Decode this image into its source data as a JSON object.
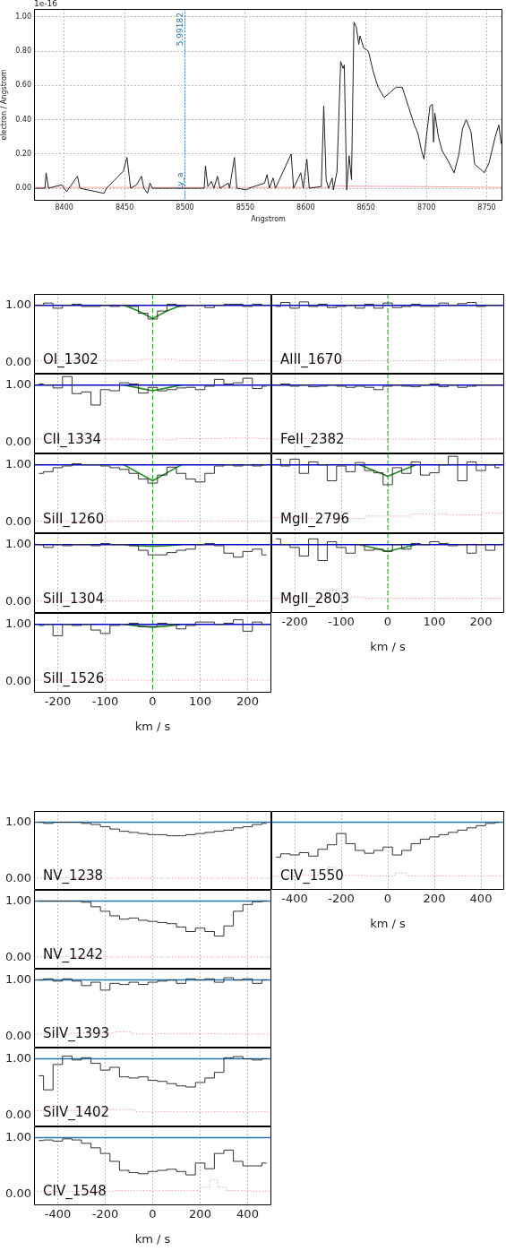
{
  "chart_data": [
    {
      "type": "line",
      "xlabel": "Angstrom",
      "ylabel": "electron / Angstrom",
      "xlim": [
        8375,
        8763
      ],
      "ylim": [
        -0.073,
        1.047
      ],
      "xticks": [
        8400,
        8450,
        8500,
        8550,
        8600,
        8650,
        8700,
        8750
      ],
      "yticks": [
        {
          "value": 0,
          "label": "0.00"
        },
        {
          "value": 0.2,
          "label": "0.20"
        },
        {
          "value": 0.4,
          "label": "0.40"
        },
        {
          "value": 0.6,
          "label": "0.60"
        },
        {
          "value": 0.8,
          "label": "0.80"
        },
        {
          "value": 1,
          "label": "1.00"
        }
      ],
      "grid": true,
      "annotations": [
        "1e-16",
        "Ly_a",
        "5.99182"
      ],
      "ref_lines": [
        {
          "axis": "x",
          "value": 8500,
          "color": "#1f77b4",
          "line_style": "dotted"
        }
      ],
      "series": [
        {
          "color": "#222222",
          "x": [
            8376,
            8384,
            8385,
            8387,
            8398,
            8400,
            8402,
            8404,
            8411,
            8413,
            8433,
            8435,
            8449,
            8452,
            8455,
            8460,
            8464,
            8466,
            8469,
            8471,
            8473,
            8516,
            8517,
            8519,
            8522,
            8524,
            8527,
            8529,
            8536,
            8537,
            8541,
            8543,
            8551,
            8553,
            8566,
            8568,
            8570,
            8573,
            8575,
            8588,
            8590,
            8596,
            8598,
            8601,
            8603,
            8613,
            8615,
            8617,
            8619,
            8622,
            8623,
            8626,
            8629,
            8631,
            8632,
            8634,
            8636,
            8638,
            8640,
            8642,
            8644,
            8645,
            8648,
            8652,
            8656,
            8660,
            8665,
            8670,
            8675,
            8680,
            8685,
            8690,
            8693,
            8696,
            8698,
            8700,
            8703,
            8705,
            8706,
            8707,
            8710,
            8713,
            8718,
            8723,
            8727,
            8730,
            8733,
            8737,
            8740,
            8745,
            8748,
            8752,
            8757,
            8760,
            8762
          ],
          "values": [
            0,
            0,
            0.09,
            0,
            0.02,
            0,
            -0.02,
            0,
            0.07,
            0,
            -0.03,
            0,
            0.1,
            0.18,
            0,
            0.02,
            0.07,
            0,
            -0.03,
            0.03,
            0,
            0,
            0.13,
            0.01,
            0.04,
            0,
            0.07,
            0,
            0.03,
            0,
            0.18,
            0,
            -0.01,
            0,
            0.03,
            0.08,
            0,
            0.06,
            0,
            0.2,
            0,
            0.09,
            0,
            0.17,
            0,
            0.01,
            0.48,
            0.05,
            0,
            0.06,
            -0.01,
            0.1,
            0.74,
            0.7,
            0.72,
            -0.01,
            0.19,
            0.05,
            0.97,
            0.94,
            0.84,
            0.89,
            0.82,
            0.8,
            0.68,
            0.59,
            0.53,
            0.56,
            0.59,
            0.59,
            0.48,
            0.37,
            0.32,
            0.22,
            0.17,
            0.3,
            0.48,
            0.49,
            0.27,
            0.44,
            0.3,
            0.22,
            0.16,
            0.09,
            0.2,
            0.35,
            0.4,
            0.33,
            0.14,
            0.11,
            0.09,
            0.15,
            0.3,
            0.37,
            0.26
          ]
        },
        {
          "color": "#f4a0a0",
          "x": [
            8376,
            8620,
            8625,
            8685,
            8763
          ],
          "values": [
            0.005,
            0.005,
            0.012,
            0.01,
            0.005
          ]
        }
      ]
    },
    {
      "type": "step",
      "annotations": [
        "OI_1302"
      ],
      "x": [
        -240,
        -220,
        -200,
        -180,
        -160,
        -140,
        -120,
        -100,
        -80,
        -60,
        -40,
        -20,
        0,
        20,
        40,
        60,
        80,
        100,
        120,
        140,
        160,
        180,
        200,
        220,
        240
      ],
      "xlim": [
        -250,
        250
      ],
      "ylim": [
        -0.2,
        1.2
      ],
      "xticks": [
        -200,
        -100,
        0,
        100,
        200
      ],
      "yticks": [
        {
          "value": 0,
          "label": "0.00"
        },
        {
          "value": 1,
          "label": "1.00"
        }
      ],
      "grid": "x",
      "tick_labels": "y",
      "ref_lines": [
        {
          "axis": "x",
          "value": 0,
          "color": "#2ca02c",
          "line_style": "dashed"
        }
      ],
      "series": [
        {
          "color": "#333333",
          "values": [
            1.0,
            1.04,
            0.95,
            1.0,
            1.02,
            0.98,
            0.98,
            1.0,
            0.98,
            1.0,
            0.98,
            0.86,
            0.76,
            0.9,
            1.02,
            0.98,
            1.0,
            1.0,
            0.96,
            1.0,
            1.02,
            1.02,
            0.98,
            1.02,
            1.0
          ]
        },
        {
          "type": "line",
          "color": "#0000cc",
          "x": [
            -250,
            250
          ],
          "values": [
            1,
            1
          ]
        },
        {
          "type": "line",
          "color": "#228b22",
          "x": [
            -60,
            -30,
            0,
            30,
            60
          ],
          "values": [
            1,
            0.9,
            0.77,
            0.9,
            1
          ]
        },
        {
          "color": "#f4a0a0",
          "line_style": "dotted",
          "x": [
            -250,
            -50,
            0,
            100,
            250
          ],
          "values": [
            0.03,
            0.03,
            0.05,
            0.03,
            0.03
          ]
        }
      ]
    },
    {
      "type": "step",
      "annotations": [
        "AlII_1670"
      ],
      "x": [
        -240,
        -220,
        -200,
        -180,
        -160,
        -140,
        -120,
        -100,
        -80,
        -60,
        -40,
        -20,
        0,
        20,
        40,
        60,
        80,
        100,
        120,
        140,
        160,
        180,
        200,
        220,
        240
      ],
      "xlim": [
        -250,
        250
      ],
      "ylim": [
        -0.2,
        1.2
      ],
      "xticks": [
        {
          "value": -200,
          "label": null
        },
        {
          "value": -100,
          "label": null
        },
        {
          "value": 0,
          "label": null
        },
        {
          "value": 100,
          "label": null
        },
        {
          "value": 200,
          "label": null
        }
      ],
      "yticks": [
        {
          "value": 0,
          "label": null
        },
        {
          "value": 1,
          "label": null
        }
      ],
      "grid": "x",
      "tick_labels": false,
      "ref_lines": [
        {
          "axis": "x",
          "value": 0,
          "color": "#2ca02c",
          "line_style": "dashed"
        }
      ],
      "series": [
        {
          "color": "#333333",
          "values": [
            0.98,
            1.05,
            0.95,
            1.06,
            0.98,
            1.02,
            0.96,
            0.98,
            1.0,
            0.95,
            1.02,
            0.95,
            1.04,
            0.96,
            0.98,
            1.02,
            0.98,
            0.98,
            1.04,
            1.0,
            1.03,
            1.05,
            0.98,
            1.0,
            1.0
          ]
        },
        {
          "type": "line",
          "color": "#0000cc",
          "x": [
            -250,
            250
          ],
          "values": [
            1,
            1
          ]
        },
        {
          "color": "#f4a0a0",
          "line_style": "dotted",
          "x": [
            -250,
            -100,
            0,
            250
          ],
          "values": [
            0.02,
            0.03,
            0.03,
            0.04
          ]
        }
      ]
    },
    {
      "type": "step",
      "annotations": [
        "CII_1334"
      ],
      "x": [
        -240,
        -220,
        -200,
        -180,
        -160,
        -140,
        -120,
        -100,
        -80,
        -60,
        -40,
        -20,
        0,
        20,
        40,
        60,
        80,
        100,
        120,
        140,
        160,
        180,
        200,
        220,
        240
      ],
      "xlim": [
        -250,
        250
      ],
      "ylim": [
        -0.2,
        1.2
      ],
      "xticks": [
        -200,
        -100,
        0,
        100,
        200
      ],
      "yticks": [
        {
          "value": 0,
          "label": "0.00"
        },
        {
          "value": 1,
          "label": "1.00"
        }
      ],
      "grid": "x",
      "tick_labels": "y",
      "ref_lines": [
        {
          "axis": "x",
          "value": 0,
          "color": "#2ca02c",
          "line_style": "dashed"
        }
      ],
      "series": [
        {
          "color": "#333333",
          "values": [
            1.02,
            1.0,
            0.95,
            1.15,
            0.85,
            0.88,
            0.65,
            0.92,
            0.9,
            1.04,
            1.02,
            0.86,
            0.96,
            0.9,
            0.92,
            0.95,
            0.96,
            0.92,
            0.98,
            1.1,
            1.02,
            1.04,
            1.12,
            0.94,
            0.98
          ]
        },
        {
          "type": "line",
          "color": "#0000cc",
          "x": [
            -250,
            250
          ],
          "values": [
            1,
            1
          ]
        },
        {
          "type": "line",
          "color": "#228b22",
          "x": [
            -60,
            -30,
            0,
            30,
            60
          ],
          "values": [
            1,
            0.95,
            0.9,
            0.95,
            1
          ]
        },
        {
          "color": "#f4a0a0",
          "line_style": "dotted",
          "x": [
            -250,
            -50,
            0,
            100,
            200,
            250
          ],
          "values": [
            0.05,
            0.05,
            0.04,
            0.06,
            0.07,
            0.06
          ]
        }
      ]
    },
    {
      "type": "step",
      "annotations": [
        "FeII_2382"
      ],
      "x": [
        -240,
        -220,
        -200,
        -180,
        -160,
        -140,
        -120,
        -100,
        -80,
        -60,
        -40,
        -20,
        0,
        20,
        40,
        60,
        80,
        100,
        120,
        140,
        160,
        180,
        200,
        220,
        240
      ],
      "xlim": [
        -250,
        250
      ],
      "ylim": [
        -0.2,
        1.2
      ],
      "xticks": [
        {
          "value": -200,
          "label": null
        },
        {
          "value": -100,
          "label": null
        },
        {
          "value": 0,
          "label": null
        },
        {
          "value": 100,
          "label": null
        },
        {
          "value": 200,
          "label": null
        }
      ],
      "yticks": [
        {
          "value": 0,
          "label": null
        },
        {
          "value": 1,
          "label": null
        }
      ],
      "grid": "x",
      "tick_labels": false,
      "ref_lines": [
        {
          "axis": "x",
          "value": 0,
          "color": "#2ca02c",
          "line_style": "dashed"
        }
      ],
      "series": [
        {
          "color": "#333333",
          "values": [
            1.0,
            1.02,
            0.98,
            1.0,
            0.97,
            0.98,
            1.0,
            0.98,
            0.96,
            0.98,
            0.96,
            0.92,
            0.98,
            1.0,
            0.98,
            0.97,
            1.0,
            1.02,
            0.97,
            1.0,
            0.96,
            0.98,
            1.0,
            1.0,
            1.0
          ]
        },
        {
          "type": "line",
          "color": "#0000cc",
          "x": [
            -250,
            250
          ],
          "values": [
            1,
            1
          ]
        },
        {
          "color": "#f4a0a0",
          "line_style": "dotted",
          "x": [
            -250,
            -140,
            0,
            250
          ],
          "values": [
            0.05,
            0.06,
            0.05,
            0.05
          ]
        }
      ]
    },
    {
      "type": "step",
      "annotations": [
        "SiII_1260"
      ],
      "x": [
        -240,
        -220,
        -200,
        -180,
        -160,
        -140,
        -120,
        -100,
        -80,
        -60,
        -40,
        -20,
        0,
        20,
        40,
        60,
        80,
        100,
        120,
        140,
        160,
        180,
        200,
        220,
        240
      ],
      "xlim": [
        -250,
        250
      ],
      "ylim": [
        -0.2,
        1.2
      ],
      "xticks": [
        -200,
        -100,
        0,
        100,
        200
      ],
      "yticks": [
        {
          "value": 0,
          "label": "0.00"
        },
        {
          "value": 1,
          "label": "1.00"
        }
      ],
      "grid": "x",
      "tick_labels": "y",
      "ref_lines": [
        {
          "axis": "x",
          "value": 0,
          "color": "#2ca02c",
          "line_style": "dashed"
        }
      ],
      "series": [
        {
          "color": "#333333",
          "values": [
            0.85,
            0.88,
            0.95,
            0.98,
            1.02,
            1.0,
            1.0,
            0.98,
            0.95,
            0.92,
            0.85,
            0.75,
            0.68,
            0.82,
            0.96,
            0.85,
            0.75,
            0.7,
            0.85,
            0.98,
            1.0,
            0.98,
            1.0,
            0.98,
            1.0
          ]
        },
        {
          "type": "line",
          "color": "#0000cc",
          "x": [
            -250,
            250
          ],
          "values": [
            1,
            1
          ]
        },
        {
          "type": "line",
          "color": "#228b22",
          "x": [
            -60,
            -30,
            0,
            30,
            60
          ],
          "values": [
            1,
            0.86,
            0.72,
            0.86,
            1
          ]
        },
        {
          "color": "#f4a0a0",
          "line_style": "dotted",
          "x": [
            -250,
            250
          ],
          "values": [
            0.01,
            0.01
          ]
        }
      ]
    },
    {
      "type": "step",
      "annotations": [
        "MgII_2796"
      ],
      "x": [
        -240,
        -220,
        -200,
        -180,
        -160,
        -140,
        -120,
        -100,
        -80,
        -60,
        -40,
        -20,
        0,
        20,
        40,
        60,
        80,
        100,
        120,
        140,
        160,
        180,
        200,
        220,
        240
      ],
      "xlim": [
        -250,
        250
      ],
      "ylim": [
        -0.2,
        1.2
      ],
      "xticks": [
        {
          "value": -200,
          "label": null
        },
        {
          "value": -100,
          "label": null
        },
        {
          "value": 0,
          "label": null
        },
        {
          "value": 100,
          "label": null
        },
        {
          "value": 200,
          "label": null
        }
      ],
      "yticks": [
        {
          "value": 0,
          "label": null
        },
        {
          "value": 1,
          "label": null
        }
      ],
      "grid": "x",
      "tick_labels": false,
      "ref_lines": [
        {
          "axis": "x",
          "value": 0,
          "color": "#2ca02c",
          "line_style": "dashed"
        }
      ],
      "series": [
        {
          "color": "#333333",
          "values": [
            1.1,
            0.98,
            1.1,
            0.85,
            1.05,
            1.0,
            0.72,
            0.98,
            0.88,
            1.04,
            0.9,
            0.86,
            0.65,
            0.95,
            0.85,
            1.05,
            0.82,
            0.86,
            1.0,
            1.15,
            0.72,
            1.05,
            0.9,
            1.0,
            0.95
          ]
        },
        {
          "type": "line",
          "color": "#0000cc",
          "x": [
            -250,
            250
          ],
          "values": [
            1,
            1
          ]
        },
        {
          "type": "line",
          "color": "#228b22",
          "x": [
            -60,
            -30,
            0,
            30,
            60
          ],
          "values": [
            1,
            0.9,
            0.8,
            0.9,
            1
          ]
        },
        {
          "color": "#f4a0a0",
          "line_style": "dotted",
          "x": [
            -250,
            -100,
            0,
            100,
            150,
            250
          ],
          "values": [
            0.08,
            0.06,
            0.1,
            0.14,
            0.12,
            0.15
          ]
        }
      ]
    },
    {
      "type": "step",
      "annotations": [
        "SiII_1304"
      ],
      "x": [
        -240,
        -220,
        -200,
        -180,
        -160,
        -140,
        -120,
        -100,
        -80,
        -60,
        -40,
        -20,
        0,
        20,
        40,
        60,
        80,
        100,
        120,
        140,
        160,
        180,
        200,
        220,
        240
      ],
      "xlim": [
        -250,
        250
      ],
      "ylim": [
        -0.2,
        1.2
      ],
      "xticks": [
        -200,
        -100,
        0,
        100,
        200
      ],
      "yticks": [
        {
          "value": 0,
          "label": "0.00"
        },
        {
          "value": 1,
          "label": "1.00"
        }
      ],
      "grid": "x",
      "tick_labels": "y",
      "ref_lines": [
        {
          "axis": "x",
          "value": 0,
          "color": "#2ca02c",
          "line_style": "dashed"
        }
      ],
      "series": [
        {
          "color": "#333333",
          "values": [
            1.0,
            0.95,
            1.0,
            0.98,
            1.0,
            1.0,
            0.98,
            1.02,
            1.0,
            1.0,
            0.98,
            0.9,
            0.82,
            0.82,
            0.86,
            0.9,
            0.92,
            1.0,
            1.02,
            0.98,
            0.85,
            0.78,
            0.88,
            0.92,
            0.82
          ]
        },
        {
          "type": "line",
          "color": "#0000cc",
          "x": [
            -250,
            250
          ],
          "values": [
            1,
            1
          ]
        },
        {
          "type": "line",
          "color": "#228b22",
          "x": [
            -60,
            -30,
            0,
            30,
            60
          ],
          "values": [
            1,
            0.98,
            0.97,
            0.98,
            1
          ]
        },
        {
          "color": "#f4a0a0",
          "line_style": "dotted",
          "x": [
            -250,
            250
          ],
          "values": [
            0.01,
            0.01
          ]
        }
      ]
    },
    {
      "type": "step",
      "annotations": [
        "MgII_2803"
      ],
      "xlabel": "km / s",
      "x": [
        -240,
        -220,
        -200,
        -180,
        -160,
        -140,
        -120,
        -100,
        -80,
        -60,
        -40,
        -20,
        0,
        20,
        40,
        60,
        80,
        100,
        120,
        140,
        160,
        180,
        200,
        220,
        240
      ],
      "xlim": [
        -250,
        250
      ],
      "ylim": [
        -0.2,
        1.2
      ],
      "xticks": [
        -200,
        -100,
        0,
        100,
        200
      ],
      "yticks": [
        {
          "value": 0,
          "label": null
        },
        {
          "value": 1,
          "label": null
        }
      ],
      "grid": "x",
      "tick_labels": "x",
      "ref_lines": [
        {
          "axis": "x",
          "value": 0,
          "color": "#2ca02c",
          "line_style": "dashed"
        }
      ],
      "series": [
        {
          "color": "#333333",
          "values": [
            1.1,
            1.0,
            0.95,
            0.8,
            1.1,
            0.72,
            1.05,
            0.95,
            0.85,
            1.0,
            0.9,
            0.92,
            0.88,
            1.0,
            0.92,
            1.02,
            1.0,
            1.05,
            1.02,
            0.98,
            1.0,
            0.85,
            1.0,
            0.9,
            1.0
          ]
        },
        {
          "type": "line",
          "color": "#0000cc",
          "x": [
            -250,
            250
          ],
          "values": [
            1,
            1
          ]
        },
        {
          "type": "line",
          "color": "#228b22",
          "x": [
            -60,
            -30,
            0,
            30,
            60
          ],
          "values": [
            1,
            0.94,
            0.88,
            0.94,
            1
          ]
        },
        {
          "color": "#f4a0a0",
          "line_style": "dotted",
          "x": [
            -250,
            -140,
            -120,
            -100,
            0,
            250
          ],
          "values": [
            0.06,
            0.06,
            0.2,
            0.08,
            0.06,
            0.06
          ]
        }
      ]
    },
    {
      "type": "step",
      "annotations": [
        "SiII_1526"
      ],
      "xlabel": "km / s",
      "x": [
        -240,
        -220,
        -200,
        -180,
        -160,
        -140,
        -120,
        -100,
        -80,
        -60,
        -40,
        -20,
        0,
        20,
        40,
        60,
        80,
        100,
        120,
        140,
        160,
        180,
        200,
        220,
        240
      ],
      "xlim": [
        -250,
        250
      ],
      "ylim": [
        -0.2,
        1.2
      ],
      "xticks": [
        -200,
        -100,
        0,
        100,
        200
      ],
      "yticks": [
        {
          "value": 0,
          "label": "0.00"
        },
        {
          "value": 1,
          "label": "1.00"
        }
      ],
      "grid": "x",
      "ref_lines": [
        {
          "axis": "x",
          "value": 0,
          "color": "#2ca02c",
          "line_style": "dashed"
        }
      ],
      "series": [
        {
          "color": "#333333",
          "values": [
            0.98,
            1.0,
            0.8,
            1.0,
            0.98,
            1.0,
            0.9,
            0.84,
            0.98,
            1.0,
            1.02,
            0.96,
            0.96,
            1.02,
            1.0,
            0.92,
            0.98,
            1.04,
            1.04,
            1.0,
            1.02,
            1.08,
            0.88,
            1.04,
            1.0
          ]
        },
        {
          "type": "line",
          "color": "#0000cc",
          "x": [
            -250,
            250
          ],
          "values": [
            1,
            1
          ]
        },
        {
          "type": "line",
          "color": "#228b22",
          "x": [
            -60,
            -30,
            0,
            30,
            60
          ],
          "values": [
            1,
            0.97,
            0.95,
            0.97,
            1
          ]
        },
        {
          "color": "#f4a0a0",
          "line_style": "dotted",
          "x": [
            -250,
            250
          ],
          "values": [
            0.02,
            0.02
          ]
        }
      ]
    },
    {
      "type": "step",
      "annotations": [
        "NV_1238"
      ],
      "x": [
        -480,
        -440,
        -400,
        -360,
        -320,
        -280,
        -240,
        -200,
        -160,
        -120,
        -80,
        -40,
        0,
        40,
        80,
        120,
        160,
        200,
        240,
        280,
        320,
        360,
        400,
        440,
        480
      ],
      "xlim": [
        -500,
        500
      ],
      "ylim": [
        -0.2,
        1.2
      ],
      "xticks": [
        -400,
        -200,
        0,
        200,
        400
      ],
      "yticks": [
        {
          "value": 0,
          "label": "0.00"
        },
        {
          "value": 1,
          "label": "1.00"
        }
      ],
      "grid": "x",
      "tick_labels": "y",
      "series": [
        {
          "color": "#333333",
          "values": [
            1.0,
            0.98,
            1.0,
            1.0,
            1.0,
            0.98,
            0.96,
            0.92,
            0.88,
            0.84,
            0.82,
            0.8,
            0.78,
            0.78,
            0.76,
            0.76,
            0.78,
            0.8,
            0.82,
            0.84,
            0.86,
            0.9,
            0.92,
            0.96,
            0.98
          ]
        },
        {
          "type": "line",
          "color": "#1f77b4",
          "x": [
            -500,
            500
          ],
          "values": [
            1,
            1
          ]
        },
        {
          "color": "#f4a0a0",
          "line_style": "dotted",
          "x": [
            -500,
            500
          ],
          "values": [
            0.01,
            0.01
          ]
        }
      ]
    },
    {
      "type": "step",
      "annotations": [
        "CIV_1550"
      ],
      "xlabel": "km / s",
      "x": [
        -480,
        -440,
        -400,
        -360,
        -320,
        -280,
        -240,
        -200,
        -160,
        -120,
        -80,
        -40,
        0,
        40,
        80,
        120,
        160,
        200,
        240,
        280,
        320,
        360,
        400,
        440,
        480
      ],
      "xlim": [
        -500,
        500
      ],
      "ylim": [
        -0.2,
        1.2
      ],
      "xticks": [
        -400,
        -200,
        0,
        200,
        400
      ],
      "yticks": [
        {
          "value": 0,
          "label": null
        },
        {
          "value": 1,
          "label": null
        }
      ],
      "grid": "x",
      "tick_labels": "x",
      "series": [
        {
          "color": "#333333",
          "values": [
            0.38,
            0.44,
            0.42,
            0.46,
            0.4,
            0.52,
            0.6,
            0.8,
            0.62,
            0.5,
            0.45,
            0.5,
            0.56,
            0.42,
            0.5,
            0.62,
            0.7,
            0.74,
            0.78,
            0.82,
            0.86,
            0.9,
            0.94,
            0.98,
            1.0
          ]
        },
        {
          "type": "line",
          "color": "#1f77b4",
          "x": [
            -500,
            500
          ],
          "values": [
            1,
            1
          ]
        },
        {
          "color": "#f4a0a0",
          "line_style": "dotted",
          "x": [
            -500,
            -280,
            -240,
            -200,
            0,
            60,
            100,
            500
          ],
          "values": [
            0.04,
            0.06,
            0.2,
            0.06,
            0.05,
            0.1,
            0.05,
            0.05
          ]
        }
      ]
    },
    {
      "type": "step",
      "annotations": [
        "NV_1242"
      ],
      "x": [
        -480,
        -440,
        -400,
        -360,
        -320,
        -280,
        -240,
        -200,
        -160,
        -120,
        -80,
        -40,
        0,
        40,
        80,
        120,
        160,
        200,
        240,
        280,
        320,
        360,
        400,
        440,
        480
      ],
      "xlim": [
        -500,
        500
      ],
      "ylim": [
        -0.2,
        1.2
      ],
      "xticks": [
        -400,
        -200,
        0,
        200,
        400
      ],
      "yticks": [
        {
          "value": 0,
          "label": "0.00"
        },
        {
          "value": 1,
          "label": "1.00"
        }
      ],
      "grid": "x",
      "tick_labels": "y",
      "series": [
        {
          "color": "#333333",
          "values": [
            1.0,
            1.0,
            1.0,
            1.0,
            1.0,
            0.98,
            0.9,
            0.82,
            0.74,
            0.68,
            0.7,
            0.66,
            0.64,
            0.62,
            0.6,
            0.54,
            0.46,
            0.52,
            0.46,
            0.38,
            0.56,
            0.82,
            0.94,
            0.99,
            1.0
          ]
        },
        {
          "type": "line",
          "color": "#1f77b4",
          "x": [
            -500,
            500
          ],
          "values": [
            1,
            1
          ]
        },
        {
          "color": "#f4a0a0",
          "line_style": "dotted",
          "x": [
            -500,
            500
          ],
          "values": [
            0.01,
            0.01
          ]
        }
      ]
    },
    {
      "type": "step",
      "annotations": [
        "SiIV_1393"
      ],
      "x": [
        -480,
        -440,
        -400,
        -360,
        -320,
        -280,
        -240,
        -200,
        -160,
        -120,
        -80,
        -40,
        0,
        40,
        80,
        120,
        160,
        200,
        240,
        280,
        320,
        360,
        400,
        440,
        480
      ],
      "xlim": [
        -500,
        500
      ],
      "ylim": [
        -0.2,
        1.2
      ],
      "xticks": [
        -400,
        -200,
        0,
        200,
        400
      ],
      "yticks": [
        {
          "value": 0,
          "label": "0.00"
        },
        {
          "value": 1,
          "label": "1.00"
        }
      ],
      "grid": "x",
      "tick_labels": "y",
      "series": [
        {
          "color": "#333333",
          "values": [
            1.0,
            1.02,
            0.98,
            1.02,
            0.98,
            0.9,
            0.96,
            0.82,
            0.94,
            0.92,
            0.96,
            0.92,
            0.96,
            0.98,
            1.0,
            0.94,
            1.02,
            1.0,
            1.02,
            0.96,
            1.04,
            1.0,
            1.02,
            0.94,
            1.0
          ]
        },
        {
          "type": "line",
          "color": "#1f77b4",
          "x": [
            -500,
            500
          ],
          "values": [
            1,
            1
          ]
        },
        {
          "color": "#f4a0a0",
          "line_style": "dotted",
          "x": [
            -500,
            -200,
            -120,
            -60,
            100,
            500
          ],
          "values": [
            0.04,
            0.06,
            0.08,
            0.04,
            0.05,
            0.04
          ]
        }
      ]
    },
    {
      "type": "step",
      "annotations": [
        "SiIV_1402"
      ],
      "x": [
        -480,
        -440,
        -400,
        -360,
        -320,
        -280,
        -240,
        -200,
        -160,
        -120,
        -80,
        -40,
        0,
        40,
        80,
        120,
        160,
        200,
        240,
        280,
        320,
        360,
        400,
        440,
        480
      ],
      "xlim": [
        -500,
        500
      ],
      "ylim": [
        -0.2,
        1.2
      ],
      "xticks": [
        -400,
        -200,
        0,
        200,
        400
      ],
      "yticks": [
        {
          "value": 0,
          "label": "0.00"
        },
        {
          "value": 1,
          "label": "1.00"
        }
      ],
      "grid": "x",
      "tick_labels": "y",
      "series": [
        {
          "color": "#333333",
          "values": [
            0.7,
            0.45,
            0.9,
            1.05,
            0.98,
            1.02,
            0.92,
            0.8,
            0.85,
            0.68,
            0.66,
            0.68,
            0.62,
            0.6,
            0.56,
            0.52,
            0.5,
            0.58,
            0.66,
            0.76,
            1.02,
            1.04,
            1.0,
            0.98,
            1.0
          ]
        },
        {
          "type": "line",
          "color": "#1f77b4",
          "x": [
            -500,
            500
          ],
          "values": [
            1,
            1
          ]
        },
        {
          "color": "#f4a0a0",
          "line_style": "dotted",
          "x": [
            -500,
            -420,
            -300,
            -150,
            0,
            500
          ],
          "values": [
            0.08,
            0.12,
            0.08,
            0.1,
            0.06,
            0.06
          ]
        }
      ]
    },
    {
      "type": "step",
      "annotations": [
        "CIV_1548"
      ],
      "xlabel": "km / s",
      "x": [
        -480,
        -440,
        -400,
        -360,
        -320,
        -280,
        -240,
        -200,
        -160,
        -120,
        -80,
        -40,
        0,
        40,
        80,
        120,
        160,
        200,
        240,
        280,
        320,
        360,
        400,
        440,
        480
      ],
      "xlim": [
        -500,
        500
      ],
      "ylim": [
        -0.2,
        1.2
      ],
      "xticks": [
        -400,
        -200,
        0,
        200,
        400
      ],
      "yticks": [
        {
          "value": 0,
          "label": "0.00"
        },
        {
          "value": 1,
          "label": "1.00"
        }
      ],
      "grid": "x",
      "series": [
        {
          "color": "#333333",
          "values": [
            0.95,
            0.96,
            0.94,
            0.98,
            0.96,
            0.9,
            0.82,
            0.72,
            0.58,
            0.42,
            0.38,
            0.36,
            0.4,
            0.42,
            0.44,
            0.4,
            0.34,
            0.55,
            0.45,
            0.72,
            0.78,
            0.58,
            0.5,
            0.5,
            0.55
          ]
        },
        {
          "type": "line",
          "color": "#1f77b4",
          "x": [
            -500,
            500
          ],
          "values": [
            1,
            1
          ]
        },
        {
          "color": "#f4a0a0",
          "line_style": "dotted",
          "x": [
            -500,
            180,
            220,
            260,
            290,
            330,
            500
          ],
          "values": [
            0.05,
            0.06,
            0.12,
            0.25,
            0.12,
            0.06,
            0.05
          ]
        }
      ]
    }
  ]
}
